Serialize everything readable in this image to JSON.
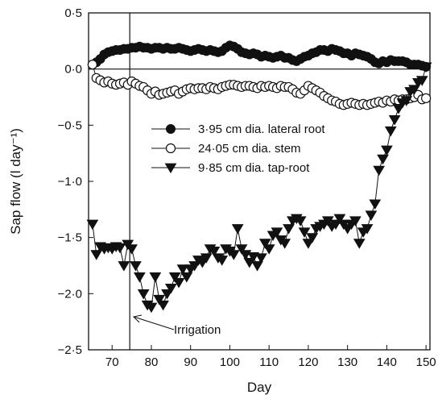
{
  "chart_data": {
    "type": "line",
    "title": "",
    "xlabel": "Day",
    "ylabel": "Sap flow (l day⁻¹)",
    "xlim": [
      64,
      151
    ],
    "ylim": [
      -2.5,
      0.5
    ],
    "x_ticks": [
      70,
      80,
      90,
      100,
      110,
      120,
      130,
      140,
      150
    ],
    "x_tick_labels": [
      "70",
      "80",
      "90",
      "100",
      "110",
      "120",
      "130",
      "140",
      "150"
    ],
    "y_ticks": [
      0.5,
      0.0,
      -0.5,
      -1.0,
      -1.5,
      -2.0,
      -2.5
    ],
    "y_tick_labels": [
      "0·5",
      "0·0",
      "−0·5",
      "−1·0",
      "−1·5",
      "−2·0",
      "−2·5"
    ],
    "grid": false,
    "legend_position": "center",
    "reference_lines": [
      {
        "orientation": "horizontal",
        "y": 0.0
      },
      {
        "orientation": "vertical",
        "x": 74.5
      }
    ],
    "annotations": [
      {
        "text": "Irrigation",
        "x": 74.5,
        "y": -2.22
      }
    ],
    "series": [
      {
        "name": "3·95 cm dia. lateral root",
        "marker": "filled-circle",
        "x": [
          65,
          66,
          67,
          68,
          69,
          70,
          71,
          72,
          73,
          74,
          75,
          76,
          77,
          78,
          79,
          80,
          81,
          82,
          83,
          84,
          85,
          86,
          87,
          88,
          89,
          90,
          91,
          92,
          93,
          94,
          95,
          96,
          97,
          98,
          99,
          100,
          101,
          102,
          103,
          104,
          105,
          106,
          107,
          108,
          109,
          110,
          111,
          112,
          113,
          114,
          115,
          116,
          117,
          118,
          119,
          120,
          121,
          122,
          123,
          124,
          125,
          126,
          127,
          128,
          129,
          130,
          131,
          132,
          133,
          134,
          135,
          136,
          137,
          138,
          139,
          140,
          141,
          142,
          143,
          144,
          145,
          146,
          147,
          148,
          149,
          150
        ],
        "y": [
          0.04,
          0.06,
          0.09,
          0.13,
          0.15,
          0.16,
          0.17,
          0.17,
          0.18,
          0.18,
          0.19,
          0.19,
          0.2,
          0.19,
          0.19,
          0.18,
          0.19,
          0.19,
          0.18,
          0.19,
          0.18,
          0.18,
          0.19,
          0.18,
          0.17,
          0.16,
          0.17,
          0.18,
          0.17,
          0.16,
          0.17,
          0.16,
          0.15,
          0.16,
          0.19,
          0.21,
          0.2,
          0.18,
          0.15,
          0.14,
          0.13,
          0.14,
          0.13,
          0.11,
          0.12,
          0.11,
          0.1,
          0.11,
          0.12,
          0.1,
          0.1,
          0.08,
          0.07,
          0.09,
          0.11,
          0.12,
          0.14,
          0.15,
          0.17,
          0.17,
          0.16,
          0.18,
          0.17,
          0.16,
          0.14,
          0.14,
          0.12,
          0.14,
          0.13,
          0.12,
          0.11,
          0.09,
          0.06,
          0.05,
          0.07,
          0.06,
          0.08,
          0.07,
          0.07,
          0.07,
          0.06,
          0.04,
          0.04,
          0.04,
          0.03,
          0.02
        ]
      },
      {
        "name": "24·05 cm dia. stem",
        "marker": "open-circle",
        "x": [
          65,
          66,
          67,
          68,
          69,
          70,
          71,
          72,
          73,
          74,
          75,
          76,
          77,
          78,
          79,
          80,
          81,
          82,
          83,
          84,
          85,
          86,
          87,
          88,
          89,
          90,
          91,
          92,
          93,
          94,
          95,
          96,
          97,
          98,
          99,
          100,
          101,
          102,
          103,
          104,
          105,
          106,
          107,
          108,
          109,
          110,
          111,
          112,
          113,
          114,
          115,
          116,
          117,
          118,
          119,
          120,
          121,
          122,
          123,
          124,
          125,
          126,
          127,
          128,
          129,
          130,
          131,
          132,
          133,
          134,
          135,
          136,
          137,
          138,
          139,
          140,
          141,
          142,
          143,
          144,
          145,
          146,
          147,
          148,
          149,
          150
        ],
        "y": [
          0.04,
          -0.08,
          -0.1,
          -0.12,
          -0.11,
          -0.13,
          -0.14,
          -0.13,
          -0.12,
          -0.14,
          -0.11,
          -0.13,
          -0.15,
          -0.16,
          -0.19,
          -0.22,
          -0.2,
          -0.23,
          -0.22,
          -0.21,
          -0.2,
          -0.19,
          -0.22,
          -0.2,
          -0.18,
          -0.17,
          -0.18,
          -0.17,
          -0.17,
          -0.18,
          -0.16,
          -0.17,
          -0.18,
          -0.16,
          -0.15,
          -0.14,
          -0.14,
          -0.15,
          -0.16,
          -0.15,
          -0.15,
          -0.16,
          -0.17,
          -0.15,
          -0.16,
          -0.15,
          -0.16,
          -0.17,
          -0.15,
          -0.16,
          -0.16,
          -0.18,
          -0.21,
          -0.22,
          -0.19,
          -0.15,
          -0.17,
          -0.19,
          -0.21,
          -0.24,
          -0.26,
          -0.28,
          -0.29,
          -0.31,
          -0.32,
          -0.31,
          -0.3,
          -0.31,
          -0.32,
          -0.31,
          -0.32,
          -0.31,
          -0.3,
          -0.29,
          -0.3,
          -0.28,
          -0.29,
          -0.27,
          -0.28,
          -0.27,
          -0.27,
          -0.26,
          -0.25,
          -0.23,
          -0.27,
          -0.26
        ]
      },
      {
        "name": "9·85 cm dia. tap-root",
        "marker": "filled-triangle-down",
        "x": [
          65,
          66,
          67,
          68,
          69,
          70,
          71,
          72,
          73,
          74,
          75,
          76,
          77,
          78,
          79,
          80,
          81,
          82,
          83,
          84,
          85,
          86,
          87,
          88,
          89,
          90,
          91,
          92,
          93,
          94,
          95,
          96,
          97,
          98,
          99,
          100,
          101,
          102,
          103,
          104,
          105,
          106,
          107,
          108,
          109,
          110,
          111,
          112,
          113,
          114,
          115,
          116,
          117,
          118,
          119,
          120,
          121,
          122,
          123,
          124,
          125,
          126,
          127,
          128,
          129,
          130,
          131,
          132,
          133,
          134,
          135,
          136,
          137,
          138,
          139,
          140,
          141,
          142,
          143,
          144,
          145,
          146,
          147,
          148,
          149,
          150
        ],
        "y": [
          -1.38,
          -1.65,
          -1.58,
          -1.6,
          -1.59,
          -1.6,
          -1.58,
          -1.59,
          -1.75,
          -1.56,
          -1.6,
          -1.75,
          -1.85,
          -2.0,
          -2.1,
          -2.12,
          -1.85,
          -2.05,
          -2.1,
          -2.0,
          -1.95,
          -1.85,
          -1.9,
          -1.78,
          -1.85,
          -1.78,
          -1.75,
          -1.7,
          -1.72,
          -1.68,
          -1.6,
          -1.62,
          -1.68,
          -1.7,
          -1.6,
          -1.62,
          -1.65,
          -1.42,
          -1.6,
          -1.65,
          -1.72,
          -1.67,
          -1.75,
          -1.68,
          -1.55,
          -1.6,
          -1.48,
          -1.45,
          -1.52,
          -1.55,
          -1.42,
          -1.35,
          -1.33,
          -1.35,
          -1.45,
          -1.55,
          -1.5,
          -1.42,
          -1.4,
          -1.38,
          -1.35,
          -1.4,
          -1.38,
          -1.33,
          -1.38,
          -1.42,
          -1.38,
          -1.35,
          -1.55,
          -1.45,
          -1.42,
          -1.3,
          -1.2,
          -0.9,
          -0.8,
          -0.72,
          -0.55,
          -0.45,
          -0.35,
          -0.3,
          -0.28,
          -0.2,
          -0.18,
          -0.12,
          -0.1,
          0.02
        ]
      }
    ]
  }
}
